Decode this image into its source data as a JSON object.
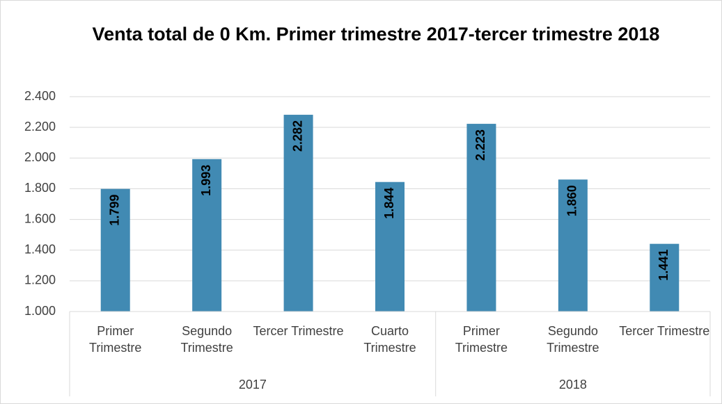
{
  "chart_data": {
    "type": "bar",
    "title": "Venta total de 0 Km. Primer trimestre 2017-tercer trimestre 2018",
    "groups": [
      {
        "name": "2017",
        "categories": [
          "Primer Trimestre",
          "Segundo Trimestre",
          "Tercer Trimestre",
          "Cuarto Trimestre"
        ]
      },
      {
        "name": "2018",
        "categories": [
          "Primer Trimestre",
          "Segundo Trimestre",
          "Tercer Trimestre"
        ]
      }
    ],
    "values": [
      1799,
      1993,
      2282,
      1844,
      2223,
      1860,
      1441
    ],
    "value_labels": [
      "1.799",
      "1.993",
      "2.282",
      "1.844",
      "2.223",
      "1.860",
      "1.441"
    ],
    "color": "#418ab3",
    "ylim": [
      1000,
      2400
    ],
    "yticks": [
      {
        "value": 1000,
        "label": "1.000"
      },
      {
        "value": 1200,
        "label": "1.200"
      },
      {
        "value": 1400,
        "label": "1.400"
      },
      {
        "value": 1600,
        "label": "1.600"
      },
      {
        "value": 1800,
        "label": "1.800"
      },
      {
        "value": 2000,
        "label": "2.000"
      },
      {
        "value": 2200,
        "label": "2.200"
      },
      {
        "value": 2400,
        "label": "2.400"
      }
    ],
    "grid": true
  }
}
